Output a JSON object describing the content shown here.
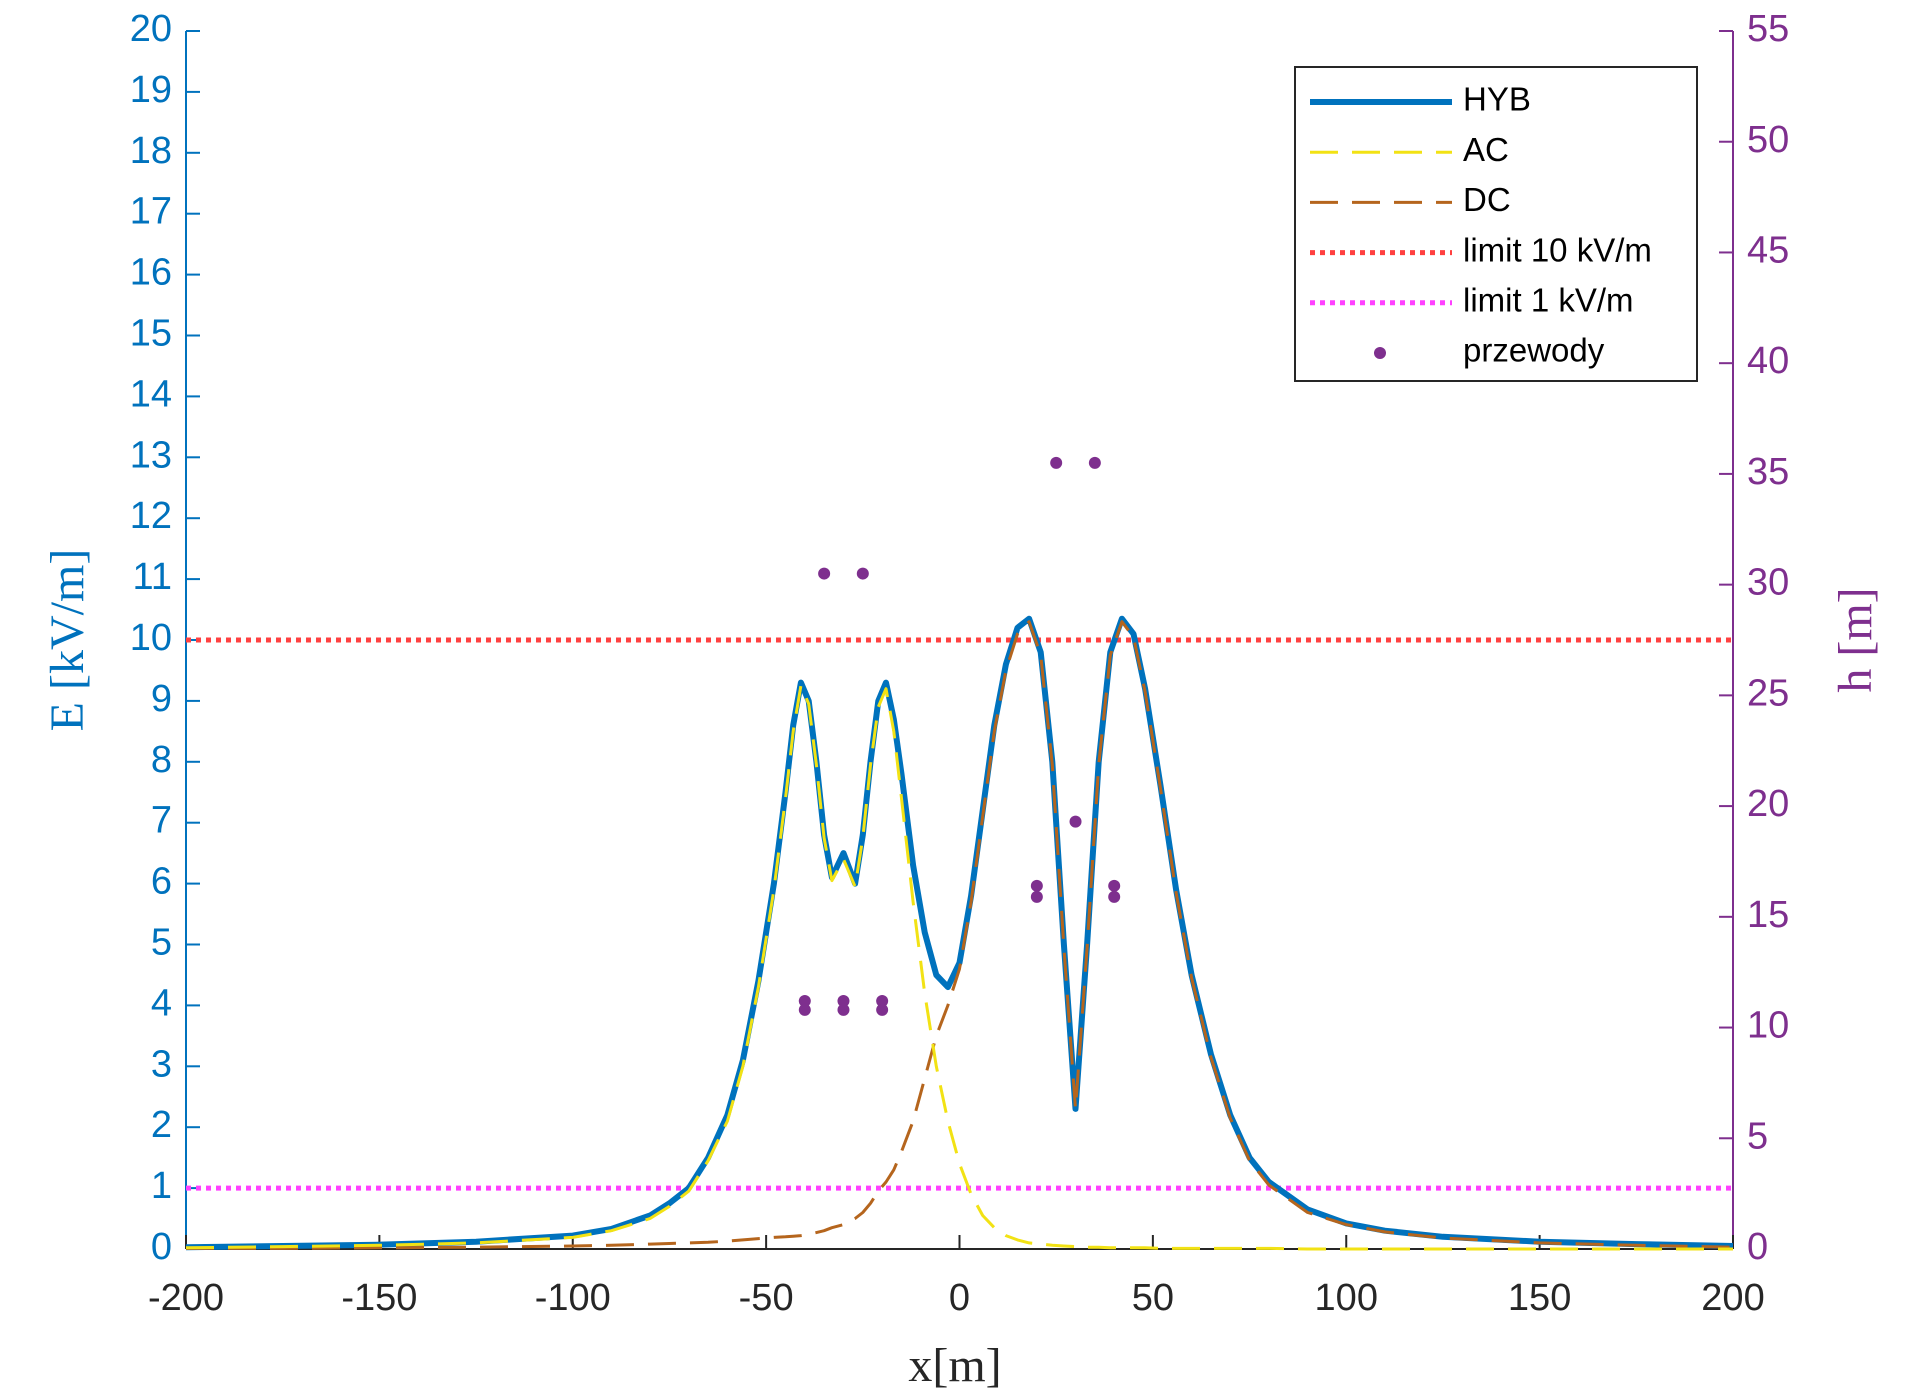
{
  "chart_data": {
    "type": "line",
    "xlabel": "x[m]",
    "ylabel": "E [kV/m]",
    "y2label": "h [m]",
    "xlim": [
      -200,
      200
    ],
    "xticks": [
      -200,
      -150,
      -100,
      -50,
      0,
      50,
      100,
      150,
      200
    ],
    "ylim": [
      0,
      20
    ],
    "yticks": [
      0,
      1,
      2,
      3,
      4,
      5,
      6,
      7,
      8,
      9,
      10,
      11,
      12,
      13,
      14,
      15,
      16,
      17,
      18,
      19,
      20
    ],
    "y2lim": [
      0,
      55
    ],
    "y2ticks": [
      0,
      5,
      10,
      15,
      20,
      25,
      30,
      35,
      40,
      45,
      50,
      55
    ],
    "ycolor": "#0072BD",
    "y2color": "#7E2F8E",
    "grid": false,
    "legend": "upper right",
    "x": [
      -200,
      -175,
      -150,
      -125,
      -100,
      -90,
      -80,
      -75,
      -70,
      -65,
      -60,
      -56,
      -52,
      -48,
      -45,
      -43,
      -41,
      -39,
      -37,
      -35,
      -33,
      -30,
      -27,
      -25,
      -23,
      -21,
      -19,
      -17,
      -15,
      -12,
      -9,
      -6,
      -3,
      0,
      3,
      6,
      9,
      12,
      15,
      18,
      21,
      24,
      27,
      30,
      33,
      36,
      39,
      42,
      45,
      48,
      52,
      56,
      60,
      65,
      70,
      75,
      80,
      90,
      100,
      110,
      125,
      150,
      175,
      200
    ],
    "series": [
      {
        "name": "HYB",
        "color": "#0072BD",
        "style": "solid",
        "linewidth": 6,
        "values": [
          0.03,
          0.05,
          0.07,
          0.12,
          0.22,
          0.33,
          0.55,
          0.75,
          1.0,
          1.5,
          2.2,
          3.1,
          4.4,
          6.0,
          7.5,
          8.6,
          9.3,
          9.0,
          8.0,
          6.8,
          6.1,
          6.5,
          6.0,
          6.8,
          8.0,
          9.0,
          9.3,
          8.7,
          7.8,
          6.3,
          5.2,
          4.5,
          4.3,
          4.7,
          5.8,
          7.2,
          8.6,
          9.6,
          10.2,
          10.35,
          9.8,
          8.0,
          5.0,
          2.3,
          5.0,
          8.0,
          9.8,
          10.35,
          10.1,
          9.2,
          7.6,
          5.9,
          4.5,
          3.2,
          2.2,
          1.5,
          1.1,
          0.65,
          0.42,
          0.3,
          0.2,
          0.12,
          0.08,
          0.05
        ]
      },
      {
        "name": "AC",
        "color": "#F2E214",
        "style": "dashed",
        "linewidth": 3,
        "values": [
          0.02,
          0.04,
          0.06,
          0.1,
          0.19,
          0.3,
          0.5,
          0.7,
          0.95,
          1.45,
          2.1,
          3.0,
          4.3,
          5.9,
          7.4,
          8.5,
          9.25,
          8.95,
          7.95,
          6.75,
          6.05,
          6.4,
          5.95,
          6.75,
          7.95,
          8.9,
          9.2,
          8.5,
          7.4,
          5.7,
          4.2,
          3.0,
          2.1,
          1.4,
          0.9,
          0.55,
          0.35,
          0.22,
          0.15,
          0.1,
          0.08,
          0.06,
          0.05,
          0.04,
          0.03,
          0.03,
          0.02,
          0.02,
          0.02,
          0.02,
          0.01,
          0.01,
          0.01,
          0.01,
          0.01,
          0.01,
          0.01,
          0,
          0,
          0,
          0,
          0,
          0,
          0
        ]
      },
      {
        "name": "DC",
        "color": "#B5651D",
        "style": "dashed",
        "linewidth": 3,
        "values": [
          0.01,
          0.01,
          0.02,
          0.03,
          0.05,
          0.06,
          0.08,
          0.09,
          0.1,
          0.11,
          0.13,
          0.15,
          0.17,
          0.19,
          0.2,
          0.21,
          0.22,
          0.24,
          0.27,
          0.3,
          0.35,
          0.4,
          0.5,
          0.6,
          0.75,
          0.95,
          1.1,
          1.3,
          1.6,
          2.1,
          2.8,
          3.5,
          4.0,
          4.6,
          5.7,
          7.1,
          8.5,
          9.5,
          10.1,
          10.3,
          9.75,
          7.95,
          4.95,
          2.3,
          4.95,
          7.95,
          9.75,
          10.3,
          10.05,
          9.15,
          7.55,
          5.85,
          4.45,
          3.15,
          2.15,
          1.45,
          1.05,
          0.6,
          0.4,
          0.28,
          0.18,
          0.1,
          0.06,
          0.03
        ]
      },
      {
        "name": "limit 10 kV/m",
        "color": "#FF4040",
        "style": "dotted",
        "linewidth": 5,
        "x": [
          -200,
          200
        ],
        "values": [
          10,
          10
        ]
      },
      {
        "name": "limit 1 kV/m",
        "color": "#FF40FF",
        "style": "dotted",
        "linewidth": 5,
        "x": [
          -200,
          200
        ],
        "values": [
          1,
          1
        ]
      },
      {
        "name": "przewody",
        "color": "#7E2F8E",
        "style": "markers",
        "axis": "y2",
        "x": [
          -40,
          -30,
          -20,
          -40,
          -30,
          -20,
          -35,
          -25,
          20,
          40,
          20,
          40,
          30,
          25,
          35
        ],
        "values": [
          11.2,
          11.2,
          11.2,
          10.8,
          10.8,
          10.8,
          30.5,
          30.5,
          16.4,
          16.4,
          15.9,
          15.9,
          19.3,
          35.5,
          35.5
        ]
      }
    ]
  }
}
